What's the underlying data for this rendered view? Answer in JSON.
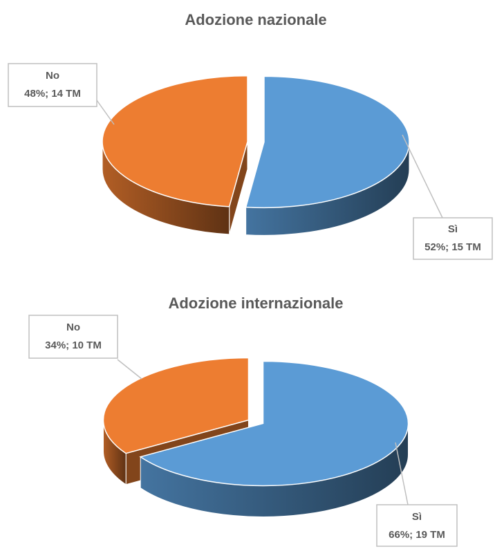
{
  "chart_data": [
    {
      "type": "pie3d",
      "title": "Adozione nazionale",
      "categories": [
        "Sì",
        "No"
      ],
      "values": [
        52,
        48
      ],
      "value_labels": [
        "52%; 15 TM",
        "48%; 14 TM"
      ],
      "colors": [
        "#5b9bd5",
        "#ed7d31"
      ]
    },
    {
      "type": "pie3d",
      "title": "Adozione internazionale",
      "categories": [
        "Sì",
        "No"
      ],
      "values": [
        66,
        34
      ],
      "value_labels": [
        "66%; 19 TM",
        "34%; 10 TM"
      ],
      "colors": [
        "#5b9bd5",
        "#ed7d31"
      ]
    }
  ]
}
